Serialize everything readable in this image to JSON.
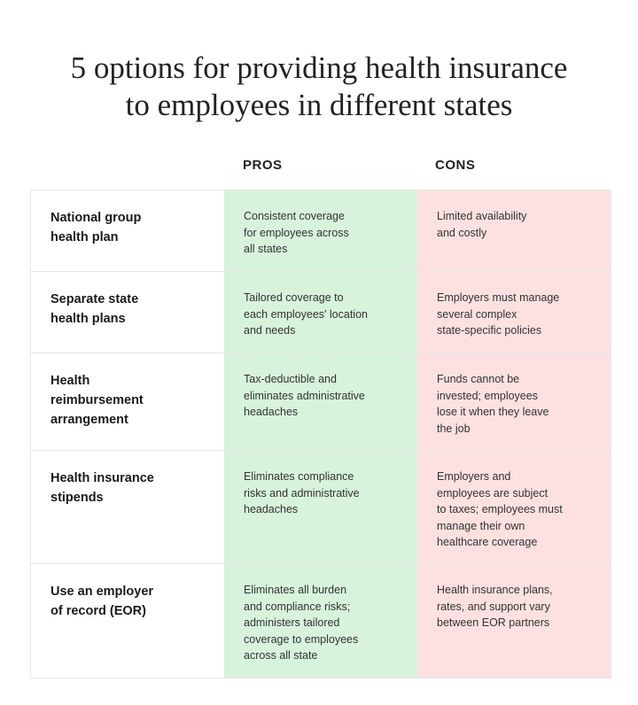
{
  "title": "5 options for providing health insurance\nto employees in different states",
  "headers": {
    "pros": "PROS",
    "cons": "CONS"
  },
  "colors": {
    "pros_bg": "#d8f3dc",
    "cons_bg": "#fde1e1"
  },
  "rows": [
    {
      "option": "National group\nhealth plan",
      "pros": "Consistent coverage\nfor employees across\nall states",
      "cons": "Limited availability\nand costly"
    },
    {
      "option": "Separate state\nhealth plans",
      "pros": "Tailored coverage to\neach employees' location\nand needs",
      "cons": "Employers must manage\nseveral complex\nstate-specific policies"
    },
    {
      "option": "Health\nreimbursement\narrangement",
      "pros": "Tax-deductible and\neliminates administrative\nheadaches",
      "cons": "Funds cannot be\ninvested; employees\nlose it when they leave\nthe job"
    },
    {
      "option": "Health insurance\nstipends",
      "pros": "Eliminates compliance\nrisks and administrative\nheadaches",
      "cons": "Employers and\nemployees are subject\nto taxes; employees must\nmanage their own\nhealthcare coverage"
    },
    {
      "option": "Use an employer\nof record (EOR)",
      "pros": "Eliminates all burden\nand compliance risks;\nadministers tailored\ncoverage to employees\nacross all state",
      "cons": "Health insurance plans,\nrates, and support vary\nbetween EOR partners"
    }
  ]
}
